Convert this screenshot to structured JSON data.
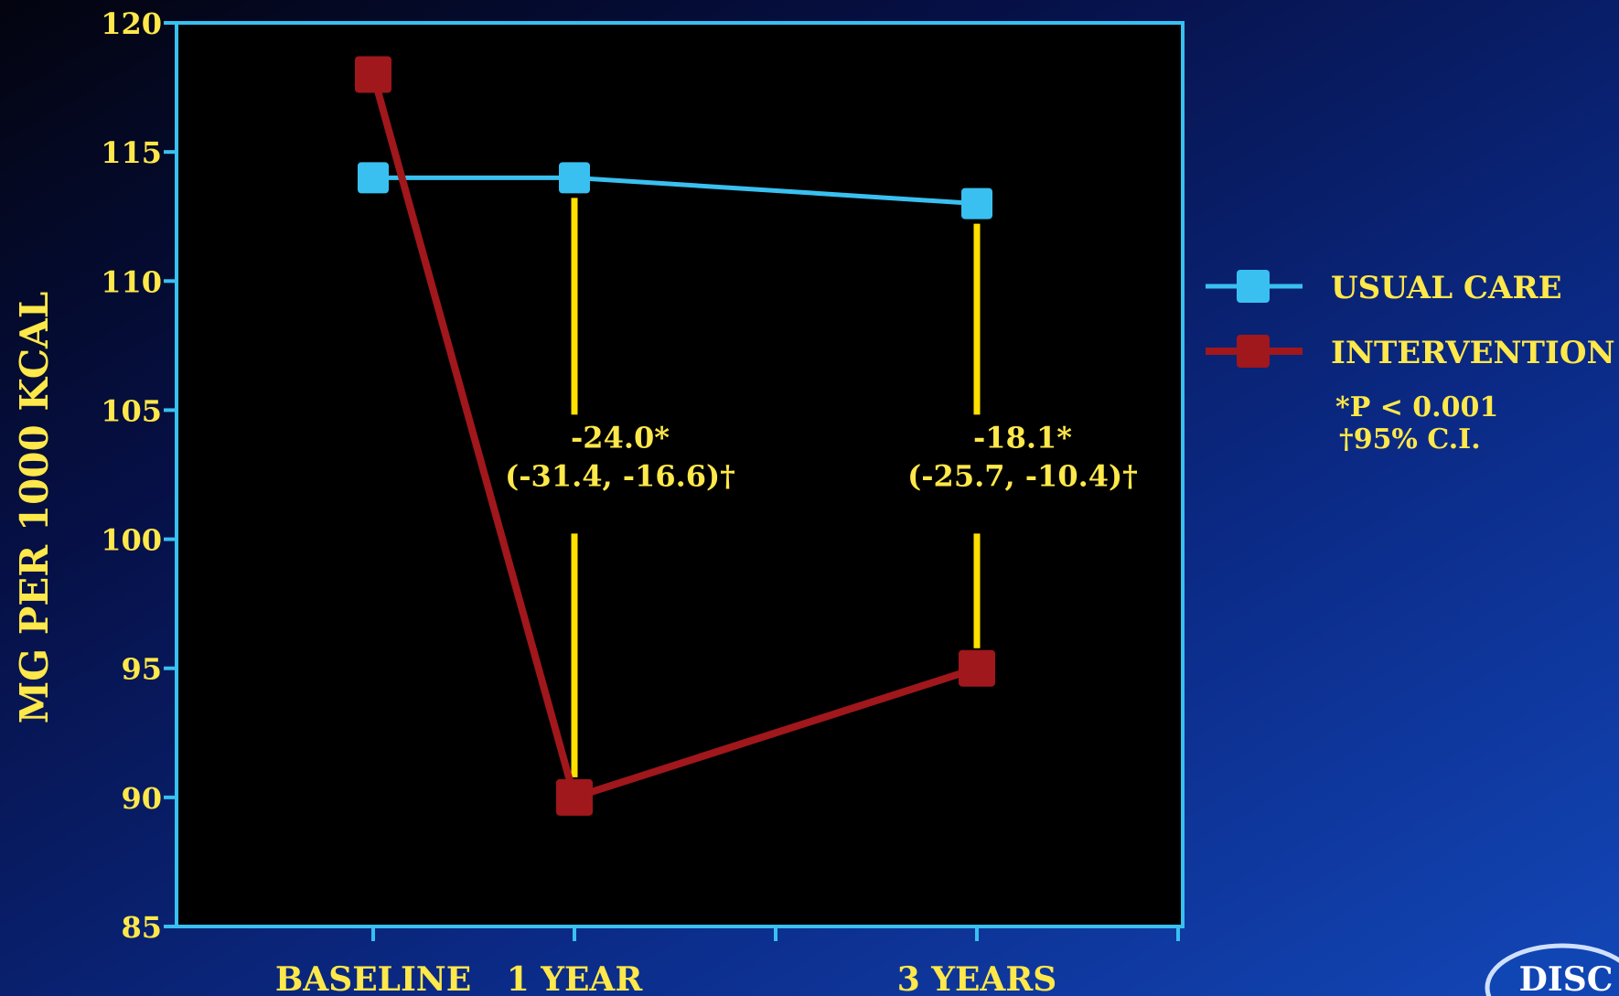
{
  "chart_data": {
    "type": "line",
    "categories": [
      "BASELINE",
      "1 YEAR",
      "3 YEARS"
    ],
    "x": [
      0,
      1,
      3
    ],
    "ylabel": "MG PER 1000 KCAL",
    "ylim": [
      85,
      120
    ],
    "yticks": [
      85,
      90,
      95,
      100,
      105,
      110,
      115,
      120
    ],
    "grid": false,
    "legend_position": "right",
    "series": [
      {
        "name": "USUAL CARE",
        "color": "#39c0f0",
        "values": [
          114,
          114,
          113
        ]
      },
      {
        "name": "INTERVENTION",
        "color": "#a0171c",
        "values": [
          118,
          90,
          95
        ]
      }
    ],
    "annotations": [
      {
        "x": 1,
        "line1": "-24.0*",
        "line2": "(-31.4, -16.6)†"
      },
      {
        "x": 3,
        "line1": "-18.1*",
        "line2": "(-25.7, -10.4)†"
      }
    ],
    "footnotes": [
      "*P < 0.001",
      "†95% C.I."
    ],
    "colors": {
      "axis": "#39c0f0",
      "text": "#ffe84a",
      "annotation_line": "#ffe000",
      "plot_bg": "#000000"
    }
  },
  "logo": "DISC"
}
